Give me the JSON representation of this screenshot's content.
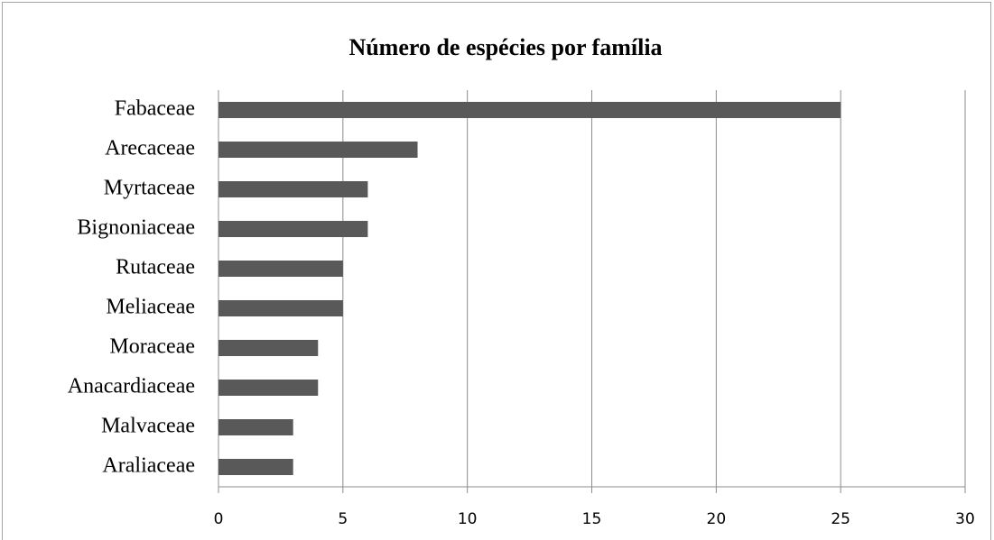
{
  "chart_data": {
    "type": "bar",
    "orientation": "horizontal",
    "title": "Número de espécies por família",
    "categories": [
      "Fabaceae",
      "Arecaceae",
      "Myrtaceae",
      "Bignoniaceae",
      "Rutaceae",
      "Meliaceae",
      "Moraceae",
      "Anacardiaceae",
      "Malvaceae",
      "Araliaceae"
    ],
    "values": [
      25,
      8,
      6,
      6,
      5,
      5,
      4,
      4,
      3,
      3
    ],
    "color": "#595959",
    "xlim": [
      0,
      30
    ],
    "xticks": [
      0,
      5,
      10,
      15,
      20,
      25,
      30
    ],
    "grid": true
  }
}
